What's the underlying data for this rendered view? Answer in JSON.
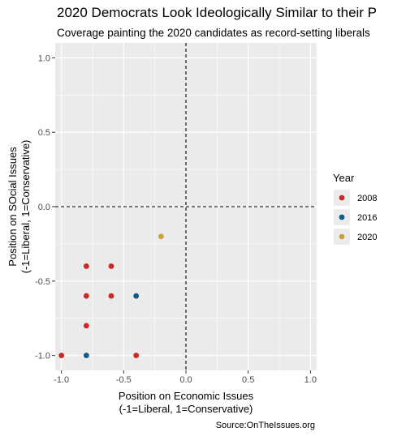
{
  "title": "2020 Democrats Look Ideologically Similar to their P",
  "subtitle": "Coverage painting the 2020 candidates as record-setting liberals",
  "chart_data": {
    "type": "scatter",
    "xlabel": [
      "Position on Economic Issues",
      "(-1=Liberal, 1=Conservative)"
    ],
    "ylabel": [
      "Position on SOcial Issues",
      "(-1=Liberal, 1=Conservative)"
    ],
    "xlim": [
      -1.05,
      1.05
    ],
    "ylim": [
      -1.1,
      1.1
    ],
    "x_ticks": [
      -1.0,
      -0.5,
      0.0,
      0.5,
      1.0
    ],
    "x_tick_labels": [
      "-1.0",
      "-0.5",
      "0.0",
      "0.5",
      "1.0"
    ],
    "y_ticks": [
      -1.0,
      -0.5,
      0.0,
      0.5,
      1.0
    ],
    "y_tick_labels": [
      "-1.0",
      "-0.5",
      "0.0",
      "0.5",
      "1.0"
    ],
    "grid": true,
    "reference_lines": {
      "x": 0,
      "y": 0,
      "style": "dashed"
    },
    "legend": {
      "title": "Year",
      "placement": "right"
    },
    "series": [
      {
        "name": "2008",
        "color": "#cd2727",
        "points": [
          [
            -0.8,
            -0.4
          ],
          [
            -0.6,
            -0.4
          ],
          [
            -0.8,
            -0.6
          ],
          [
            -0.6,
            -0.6
          ],
          [
            -0.8,
            -0.8
          ],
          [
            -1.0,
            -1.0
          ],
          [
            -0.4,
            -1.0
          ]
        ]
      },
      {
        "name": "2016",
        "color": "#0f5b8a",
        "points": [
          [
            -0.4,
            -0.6
          ],
          [
            -0.8,
            -1.0
          ]
        ]
      },
      {
        "name": "2020",
        "color": "#c8a234",
        "points": [
          [
            -0.2,
            -0.2
          ]
        ]
      }
    ],
    "source": "Source:OnTheIssues.org"
  }
}
